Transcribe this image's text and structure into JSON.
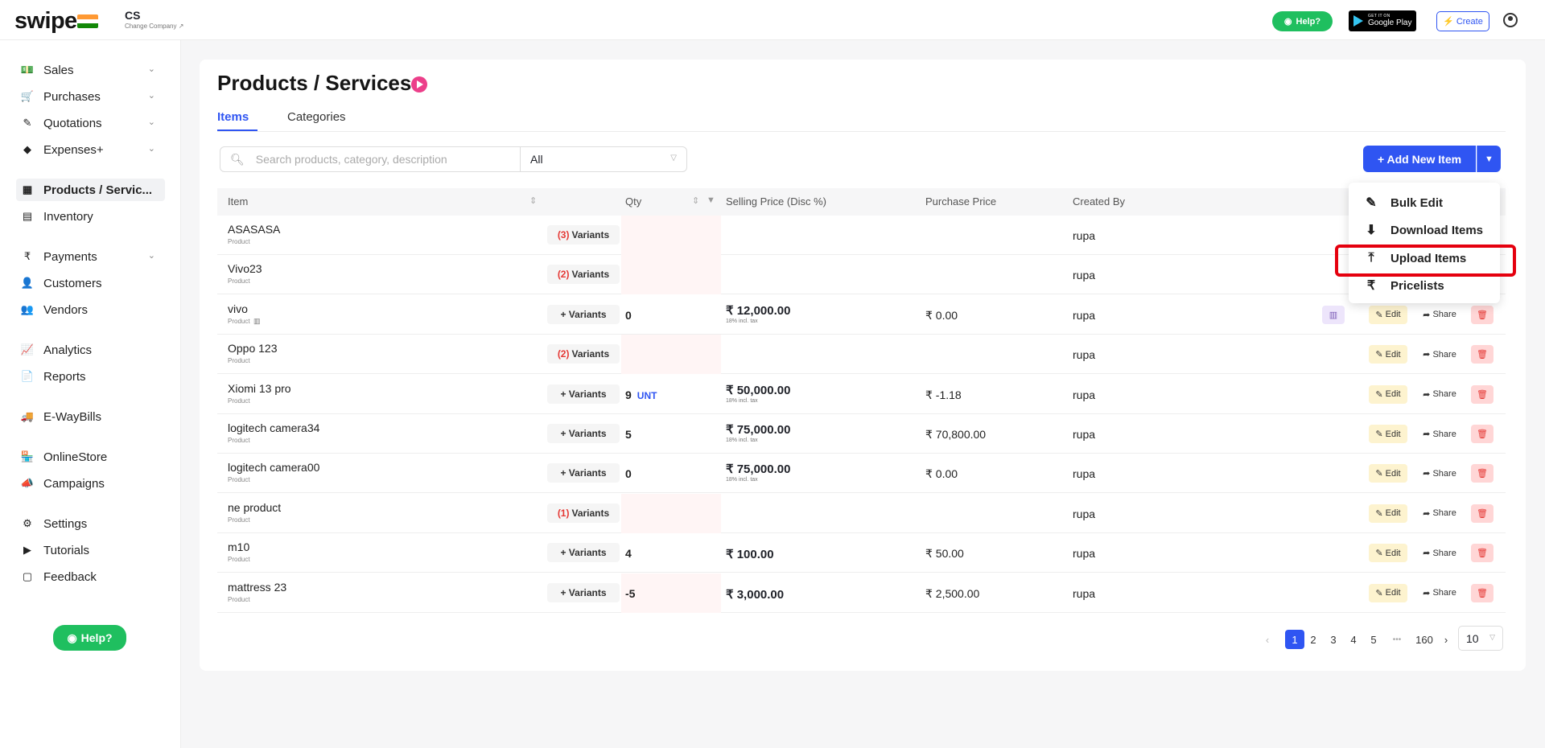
{
  "app": {
    "logo": "swipe",
    "company": "CS",
    "change_company": "Change Company ↗",
    "help": "Help?",
    "gplay_small": "GET IT ON",
    "gplay_big": "Google Play",
    "create": "Create"
  },
  "sidebar": {
    "items": [
      {
        "label": "Sales",
        "icon": "💵",
        "chev": true
      },
      {
        "label": "Purchases",
        "icon": "🛒",
        "chev": true
      },
      {
        "label": "Quotations",
        "icon": "✎",
        "chev": true
      },
      {
        "label": "Expenses+",
        "icon": "◆",
        "chev": true
      },
      {
        "label": "Products / Servic...",
        "icon": "▦",
        "chev": false
      },
      {
        "label": "Inventory",
        "icon": "▤",
        "chev": false
      },
      {
        "label": "Payments",
        "icon": "₹",
        "chev": true
      },
      {
        "label": "Customers",
        "icon": "👤",
        "chev": false
      },
      {
        "label": "Vendors",
        "icon": "👥",
        "chev": false
      },
      {
        "label": "Analytics",
        "icon": "📈",
        "chev": false
      },
      {
        "label": "Reports",
        "icon": "📄",
        "chev": false
      },
      {
        "label": "E-WayBills",
        "icon": "🚚",
        "chev": false
      },
      {
        "label": "OnlineStore",
        "icon": "🏪",
        "chev": false
      },
      {
        "label": "Campaigns",
        "icon": "📣",
        "chev": false
      },
      {
        "label": "Settings",
        "icon": "⚙",
        "chev": false
      },
      {
        "label": "Tutorials",
        "icon": "▶",
        "chev": false
      },
      {
        "label": "Feedback",
        "icon": "▢",
        "chev": false
      }
    ],
    "help": "Help?"
  },
  "page": {
    "title": "Products / Services",
    "tabs": [
      "Items",
      "Categories"
    ],
    "search_placeholder": "Search products, category, description",
    "filter_value": "All",
    "add_button": "+ Add New Item"
  },
  "table": {
    "headers": [
      "Item",
      "Qty",
      "Selling Price (Disc %)",
      "Purchase Price",
      "Created By"
    ],
    "rows": [
      {
        "name": "ASASASA",
        "sub": "Product",
        "variants": "Variants",
        "var_count": "(3)",
        "qty": "",
        "unit": "",
        "price": "",
        "tax": "",
        "pp": "",
        "by": "rupa"
      },
      {
        "name": "Vivo23",
        "sub": "Product",
        "variants": "Variants",
        "var_count": "(2)",
        "qty": "",
        "unit": "",
        "price": "",
        "tax": "",
        "pp": "",
        "by": "rupa"
      },
      {
        "name": "vivo",
        "sub": "Product",
        "variants": "+ Variants",
        "var_count": "",
        "qty": "0",
        "unit": "",
        "price": "₹ 12,000.00",
        "tax": "18% incl. tax",
        "pp": "₹ 0.00",
        "by": "rupa"
      },
      {
        "name": "Oppo 123",
        "sub": "Product",
        "variants": "Variants",
        "var_count": "(2)",
        "qty": "",
        "unit": "",
        "price": "",
        "tax": "",
        "pp": "",
        "by": "rupa"
      },
      {
        "name": "Xiomi 13 pro",
        "sub": "Product",
        "variants": "+ Variants",
        "var_count": "",
        "qty": "9",
        "unit": "UNT",
        "price": "₹ 50,000.00",
        "tax": "18% incl. tax",
        "pp": "₹ -1.18",
        "by": "rupa"
      },
      {
        "name": "logitech camera34",
        "sub": "Product",
        "variants": "+ Variants",
        "var_count": "",
        "qty": "5",
        "unit": "",
        "price": "₹ 75,000.00",
        "tax": "18% incl. tax",
        "pp": "₹ 70,800.00",
        "by": "rupa"
      },
      {
        "name": "logitech camera00",
        "sub": "Product",
        "variants": "+ Variants",
        "var_count": "",
        "qty": "0",
        "unit": "",
        "price": "₹ 75,000.00",
        "tax": "18% incl. tax",
        "pp": "₹ 0.00",
        "by": "rupa"
      },
      {
        "name": "ne product",
        "sub": "Product",
        "variants": "Variants",
        "var_count": "(1)",
        "qty": "",
        "unit": "",
        "price": "",
        "tax": "",
        "pp": "",
        "by": "rupa"
      },
      {
        "name": "m10",
        "sub": "Product",
        "variants": "+ Variants",
        "var_count": "",
        "qty": "4",
        "unit": "",
        "price": "₹ 100.00",
        "tax": "",
        "pp": "₹ 50.00",
        "by": "rupa"
      },
      {
        "name": "mattress 23",
        "sub": "Product",
        "variants": "+ Variants",
        "var_count": "",
        "qty": "-5",
        "unit": "",
        "price": "₹ 3,000.00",
        "tax": "",
        "pp": "₹ 2,500.00",
        "by": "rupa"
      }
    ],
    "edit": "Edit",
    "share": "Share"
  },
  "dropdown": {
    "items": [
      "Bulk Edit",
      "Download Items",
      "Upload Items",
      "Pricelists"
    ]
  },
  "pagination": {
    "pages": [
      "1",
      "2",
      "3",
      "4",
      "5",
      "•••",
      "160"
    ],
    "current": "1",
    "page_size": "10"
  },
  "colors": {
    "accent": "#2f55f2",
    "whatsapp": "#1fbf5f",
    "danger": "#e53935",
    "highlight": "#e5000e"
  }
}
